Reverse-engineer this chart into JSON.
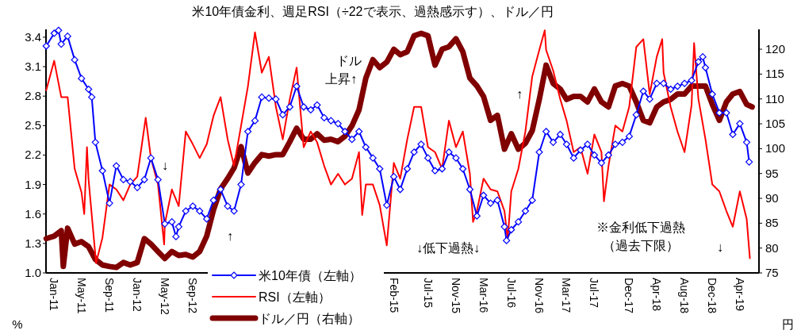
{
  "chart_data": {
    "type": "line",
    "title": "米10年債金利、週足RSI（÷22で表示、過熱感示す）、ドル／円",
    "ylabel": "%",
    "y2label": "円",
    "xlim": [
      "2010-11-26",
      "2019-06-24"
    ],
    "xticks": [
      {
        "value": "2011-01",
        "label": "Jan-11"
      },
      {
        "value": "2011-05",
        "label": "May-11"
      },
      {
        "value": "2011-09",
        "label": "Sep-11"
      },
      {
        "value": "2012-01",
        "label": "Jan-12"
      },
      {
        "value": "2012-05",
        "label": "May-12"
      },
      {
        "value": "2012-09",
        "label": "Sep-12"
      },
      {
        "value": "2015-02",
        "label": "Feb-15"
      },
      {
        "value": "2015-07",
        "label": "Jul-15"
      },
      {
        "value": "2015-11",
        "label": "Nov-15"
      },
      {
        "value": "2016-03",
        "label": "Mar-16"
      },
      {
        "value": "2016-07",
        "label": "Jul-16"
      },
      {
        "value": "2016-11",
        "label": "Nov-16"
      },
      {
        "value": "2017-03",
        "label": "Mar-17"
      },
      {
        "value": "2017-07",
        "label": "Jul-17"
      },
      {
        "value": "2017-12",
        "label": "Dec-17"
      },
      {
        "value": "2018-04",
        "label": "Apr-18"
      },
      {
        "value": "2018-08",
        "label": "Aug-18"
      },
      {
        "value": "2018-12",
        "label": "Dec-18"
      },
      {
        "value": "2019-04",
        "label": "Apr-19"
      }
    ],
    "ylim": [
      1.0,
      3.48
    ],
    "yticks": [
      {
        "value": 1.0,
        "label": "1.0"
      },
      1.3,
      1.6,
      1.9,
      2.2,
      2.5,
      2.8,
      3.1,
      3.4
    ],
    "y2lim": [
      75,
      124
    ],
    "y2ticks": [
      75,
      80,
      85,
      90,
      95,
      100,
      105,
      110,
      115,
      120
    ],
    "legend": "bottom",
    "grid": false,
    "annotations": [
      "ドル",
      "上昇↑",
      "↓",
      "↑",
      "↓低下過熱↓",
      "↑",
      "※金利低下過熱",
      "（過去下限）",
      "↓"
    ],
    "series": [
      {
        "name": "米10年債（左軸）",
        "color": "#0000ff",
        "marker": "diamond",
        "line_style": "solid",
        "x": [
          "2010-11-27",
          "2011-01",
          "2011-01-20",
          "2011-02",
          "2011-03",
          "2011-04",
          "2011-05",
          "2011-06",
          "2011-06-15",
          "2011-07",
          "2011-08",
          "2011-09",
          "2011-10",
          "2011-11",
          "2011-12",
          "2012-01",
          "2012-02",
          "2012-03",
          "2012-04",
          "2012-05",
          "2012-06",
          "2012-06-19",
          "2012-07",
          "2012-08",
          "2012-09",
          "2012-10",
          "2012-11",
          "2012-12",
          "2013-01",
          "2013-02",
          "2013-03",
          "2013-04",
          "2013-05",
          "2013-06",
          "2013-07",
          "2013-08",
          "2013-09",
          "2013-10",
          "2013-11",
          "2013-12",
          "2014-01",
          "2014-02",
          "2014-03",
          "2014-04",
          "2014-05",
          "2014-06",
          "2014-07",
          "2014-08",
          "2014-09",
          "2014-10",
          "2014-11",
          "2014-12",
          "2015-01",
          "2015-02",
          "2015-03",
          "2015-04",
          "2015-05",
          "2015-06",
          "2015-07",
          "2015-08",
          "2015-09",
          "2015-10",
          "2015-11",
          "2015-12",
          "2016-01",
          "2016-02",
          "2016-03",
          "2016-04",
          "2016-05",
          "2016-06",
          "2016-06-10",
          "2016-07",
          "2016-08",
          "2016-09",
          "2016-10",
          "2016-11",
          "2016-12",
          "2017-01",
          "2017-02",
          "2017-03",
          "2017-04",
          "2017-05",
          "2017-06",
          "2017-07",
          "2017-08",
          "2017-09",
          "2017-10",
          "2017-11",
          "2017-12",
          "2018-01",
          "2018-02",
          "2018-03",
          "2018-04",
          "2018-05",
          "2018-06",
          "2018-07",
          "2018-08",
          "2018-09",
          "2018-10",
          "2018-10-20",
          "2018-11",
          "2018-12",
          "2019-01",
          "2019-02",
          "2019-03",
          "2019-04",
          "2019-05",
          "2019-05-12"
        ],
        "values": [
          3.31,
          3.44,
          3.47,
          3.33,
          3.41,
          3.17,
          2.98,
          2.87,
          2.79,
          2.33,
          2.04,
          1.71,
          2.09,
          1.95,
          1.93,
          1.87,
          1.95,
          2.17,
          1.95,
          1.5,
          1.52,
          1.37,
          1.47,
          1.63,
          1.68,
          1.63,
          1.55,
          1.74,
          1.85,
          1.68,
          1.63,
          1.9,
          2.44,
          2.55,
          2.79,
          2.78,
          2.77,
          2.61,
          2.69,
          2.9,
          2.69,
          2.66,
          2.71,
          2.58,
          2.55,
          2.52,
          2.44,
          2.36,
          2.44,
          2.28,
          2.17,
          2.06,
          1.69,
          1.98,
          1.85,
          2.06,
          2.23,
          2.31,
          2.17,
          2.04,
          2.06,
          2.23,
          2.17,
          2.06,
          1.85,
          1.58,
          1.79,
          1.71,
          1.74,
          1.47,
          1.33,
          1.44,
          1.52,
          1.63,
          1.74,
          2.23,
          2.44,
          2.33,
          2.41,
          2.31,
          2.17,
          2.25,
          2.31,
          2.2,
          2.12,
          2.2,
          2.31,
          2.33,
          2.39,
          2.61,
          2.85,
          2.77,
          2.93,
          2.93,
          2.87,
          2.9,
          2.93,
          2.96,
          3.15,
          3.2,
          3.09,
          2.82,
          2.63,
          2.63,
          2.41,
          2.52,
          2.33,
          2.13
        ]
      },
      {
        "name": "RSI（左軸）",
        "color": "#ff0000",
        "marker": "none",
        "line_style": "solid",
        "x": [
          "2010-11-27",
          "2011-01",
          "2011-02",
          "2011-03",
          "2011-04",
          "2011-05",
          "2011-05-13",
          "2011-05-25",
          "2011-06",
          "2011-07-04",
          "2011-08",
          "2011-09",
          "2011-10",
          "2011-11",
          "2011-12",
          "2012-01",
          "2012-02-07",
          "2012-03",
          "2012-04",
          "2012-04-28",
          "2012-05",
          "2012-06",
          "2012-07",
          "2012-08",
          "2012-09",
          "2012-10",
          "2012-11",
          "2012-12",
          "2013-01",
          "2013-02",
          "2013-03",
          "2013-04",
          "2013-05",
          "2013-06",
          "2013-07",
          "2013-08",
          "2013-09",
          "2013-10",
          "2013-11",
          "2013-12",
          "2014-01",
          "2014-02",
          "2014-03",
          "2014-04",
          "2014-05",
          "2014-06",
          "2014-07",
          "2014-08",
          "2014-09",
          "2014-09-15",
          "2014-10",
          "2014-11",
          "2014-12",
          "2015-01",
          "2015-02",
          "2015-03",
          "2015-04",
          "2015-05",
          "2015-06",
          "2015-07",
          "2015-08",
          "2015-09",
          "2015-10",
          "2015-11",
          "2015-12",
          "2016-01",
          "2016-01-15",
          "2016-02",
          "2016-03",
          "2016-04",
          "2016-05",
          "2016-06",
          "2016-06-15",
          "2016-07",
          "2016-08",
          "2016-09",
          "2016-10",
          "2016-11",
          "2016-11-25",
          "2016-12",
          "2017-01",
          "2017-02",
          "2017-03",
          "2017-04",
          "2017-05",
          "2017-06",
          "2017-07",
          "2017-08",
          "2017-08-12",
          "2017-09",
          "2017-10",
          "2017-11",
          "2017-12",
          "2018-01",
          "2018-02",
          "2018-03",
          "2018-04",
          "2018-04-25",
          "2018-05",
          "2018-06",
          "2018-07",
          "2018-08",
          "2018-09",
          "2018-09-12",
          "2018-10",
          "2018-11",
          "2018-12",
          "2019-01",
          "2019-02",
          "2019-03",
          "2019-04",
          "2019-05",
          "2019-05-15"
        ],
        "values": [
          2.86,
          3.16,
          2.79,
          2.79,
          2.06,
          1.82,
          1.6,
          2.28,
          1.95,
          1.1,
          1.36,
          1.9,
          1.85,
          1.74,
          1.9,
          1.98,
          2.58,
          2.17,
          1.9,
          1.29,
          1.5,
          1.85,
          1.68,
          2.44,
          2.31,
          2.17,
          2.31,
          2.6,
          2.79,
          2.36,
          2.09,
          2.5,
          2.9,
          3.45,
          3.04,
          3.2,
          2.69,
          2.36,
          2.77,
          3.09,
          2.28,
          2.44,
          2.33,
          2.09,
          1.9,
          2.01,
          1.9,
          1.96,
          2.23,
          1.59,
          1.9,
          1.9,
          1.69,
          1.28,
          2.12,
          1.96,
          2.36,
          2.69,
          2.69,
          2.28,
          2.23,
          2.06,
          2.55,
          2.28,
          2.44,
          2.01,
          1.52,
          1.63,
          1.96,
          1.85,
          1.83,
          1.63,
          1.34,
          1.83,
          2.06,
          2.44,
          3.0,
          3.27,
          3.47,
          3.27,
          3.06,
          2.77,
          2.55,
          2.23,
          2.28,
          2.01,
          2.41,
          2.23,
          1.73,
          2.09,
          2.5,
          2.44,
          2.69,
          3.3,
          3.38,
          2.82,
          3.2,
          3.38,
          3.04,
          2.69,
          2.44,
          2.23,
          2.71,
          3.34,
          2.77,
          2.36,
          1.9,
          1.83,
          1.63,
          1.47,
          1.83,
          1.55,
          1.15
        ]
      },
      {
        "name": "ドル／円（右軸）",
        "color": "#800000",
        "marker": "none",
        "line_style": "solid",
        "axis": "y2",
        "x": [
          "2010-11-27",
          "2011-01",
          "2011-02",
          "2011-02-10",
          "2011-03",
          "2011-04",
          "2011-05",
          "2011-06",
          "2011-07",
          "2011-08",
          "2011-09",
          "2011-10",
          "2011-11",
          "2011-12",
          "2012-01",
          "2012-02",
          "2012-03",
          "2012-04",
          "2012-05",
          "2012-06",
          "2012-07",
          "2012-08",
          "2012-09",
          "2012-10",
          "2012-11",
          "2012-12",
          "2013-01",
          "2013-02",
          "2013-03",
          "2013-04",
          "2013-05",
          "2013-06",
          "2013-07",
          "2013-08",
          "2013-09",
          "2013-10",
          "2013-11",
          "2013-12",
          "2014-01",
          "2014-02",
          "2014-03",
          "2014-04",
          "2014-05",
          "2014-06",
          "2014-07",
          "2014-08",
          "2014-09",
          "2014-10",
          "2014-11",
          "2014-12",
          "2015-01",
          "2015-02",
          "2015-03",
          "2015-04",
          "2015-05",
          "2015-06",
          "2015-07",
          "2015-08",
          "2015-09",
          "2015-10",
          "2015-11",
          "2015-12",
          "2016-01",
          "2016-02",
          "2016-03",
          "2016-04",
          "2016-05",
          "2016-06",
          "2016-07",
          "2016-08",
          "2016-09",
          "2016-10",
          "2016-11",
          "2016-12",
          "2017-01",
          "2017-02",
          "2017-03",
          "2017-04",
          "2017-05",
          "2017-06",
          "2017-07",
          "2017-08",
          "2017-09",
          "2017-10",
          "2017-11",
          "2017-12",
          "2018-01",
          "2018-02",
          "2018-03",
          "2018-04",
          "2018-05",
          "2018-06",
          "2018-07",
          "2018-08",
          "2018-09",
          "2018-10",
          "2018-11",
          "2018-12",
          "2019-01",
          "2019-02",
          "2019-03",
          "2019-04",
          "2019-05",
          "2019-05-25"
        ],
        "values": [
          81.9,
          82.4,
          83.5,
          76.3,
          84.0,
          80.8,
          81.3,
          80.3,
          77.7,
          76.6,
          76.3,
          76.1,
          77.1,
          76.6,
          77.1,
          81.9,
          80.8,
          79.3,
          77.9,
          79.3,
          78.5,
          78.7,
          78.2,
          79.3,
          82.4,
          87.7,
          91.9,
          94.0,
          96.1,
          100.4,
          95.1,
          97.2,
          98.8,
          98.5,
          98.8,
          98.8,
          101.4,
          104.1,
          101.9,
          101.9,
          103.0,
          101.7,
          101.9,
          101.4,
          102.5,
          104.6,
          107.8,
          114.2,
          117.9,
          116.3,
          117.4,
          120.0,
          118.9,
          119.5,
          122.7,
          123.2,
          122.7,
          116.8,
          120.0,
          120.5,
          122.1,
          119.5,
          114.2,
          112.6,
          110.5,
          105.7,
          106.7,
          99.9,
          103.0,
          99.9,
          101.1,
          103.6,
          109.9,
          116.8,
          113.1,
          112.0,
          109.9,
          110.5,
          110.5,
          109.4,
          112.0,
          109.4,
          108.4,
          112.6,
          113.1,
          112.6,
          109.4,
          105.7,
          105.2,
          108.4,
          109.4,
          109.9,
          111.0,
          111.0,
          112.6,
          112.6,
          112.6,
          108.9,
          105.7,
          109.4,
          111.0,
          111.5,
          108.9,
          108.4
        ]
      }
    ]
  }
}
